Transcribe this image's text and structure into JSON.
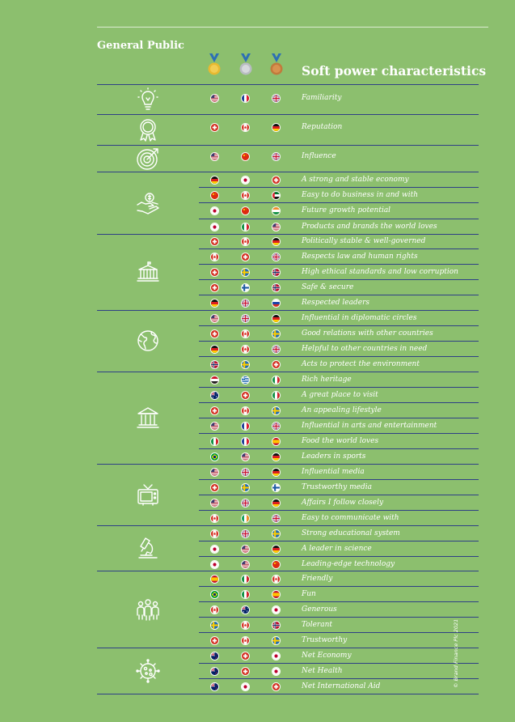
{
  "header": {
    "section_title": "General Public",
    "table_title": "Soft power characteristics",
    "medals": [
      "gold-medal",
      "silver-medal",
      "bronze-medal"
    ]
  },
  "categories": [
    {
      "icon": "lightbulb-icon",
      "rows": [
        {
          "label": "Familiarity",
          "flags": [
            "us",
            "fr",
            "uk"
          ]
        }
      ]
    },
    {
      "icon": "award-rosette-icon",
      "rows": [
        {
          "label": "Reputation",
          "flags": [
            "ch",
            "ca",
            "de"
          ]
        }
      ]
    },
    {
      "icon": "target-icon",
      "rows": [
        {
          "label": "Influence",
          "flags": [
            "us",
            "cn",
            "uk"
          ]
        }
      ]
    },
    {
      "icon": "handshake-money-icon",
      "rows": [
        {
          "label": "A strong and stable economy",
          "flags": [
            "de",
            "jp",
            "ch"
          ]
        },
        {
          "label": "Easy to do business in and with",
          "flags": [
            "cn",
            "ca",
            "ae"
          ]
        },
        {
          "label": "Future growth potential",
          "flags": [
            "jp",
            "cn",
            "in"
          ]
        },
        {
          "label": "Products and brands the world loves",
          "flags": [
            "jp",
            "it",
            "us"
          ]
        }
      ]
    },
    {
      "icon": "government-building-icon",
      "rows": [
        {
          "label": "Politically stable & well-governed",
          "flags": [
            "ch",
            "ca",
            "de"
          ]
        },
        {
          "label": "Respects law and human rights",
          "flags": [
            "ca",
            "ch",
            "uk"
          ]
        },
        {
          "label": "High ethical standards and low corruption",
          "flags": [
            "ch",
            "se",
            "no"
          ]
        },
        {
          "label": "Safe & secure",
          "flags": [
            "ch",
            "fi",
            "no"
          ]
        },
        {
          "label": "Respected leaders",
          "flags": [
            "de",
            "uk",
            "ru"
          ]
        }
      ]
    },
    {
      "icon": "globe-icon",
      "rows": [
        {
          "label": "Influential in diplomatic circles",
          "flags": [
            "us",
            "uk",
            "de"
          ]
        },
        {
          "label": "Good relations with other countries",
          "flags": [
            "ch",
            "ca",
            "se"
          ]
        },
        {
          "label": "Helpful to other countries in need",
          "flags": [
            "de",
            "ca",
            "uk"
          ]
        },
        {
          "label": "Acts to protect the environment",
          "flags": [
            "no",
            "se",
            "ch"
          ]
        }
      ]
    },
    {
      "icon": "museum-icon",
      "rows": [
        {
          "label": "Rich heritage",
          "flags": [
            "eg",
            "gr",
            "it"
          ]
        },
        {
          "label": "A great place to visit",
          "flags": [
            "au",
            "ch",
            "it"
          ]
        },
        {
          "label": "An appealing lifestyle",
          "flags": [
            "ch",
            "ca",
            "se"
          ]
        },
        {
          "label": "Influential in arts and entertainment",
          "flags": [
            "us",
            "fr",
            "uk"
          ]
        },
        {
          "label": "Food the world loves",
          "flags": [
            "it",
            "fr",
            "es"
          ]
        },
        {
          "label": "Leaders in sports",
          "flags": [
            "br",
            "us",
            "de"
          ]
        }
      ]
    },
    {
      "icon": "television-icon",
      "rows": [
        {
          "label": "Influential media",
          "flags": [
            "us",
            "uk",
            "de"
          ]
        },
        {
          "label": "Trustworthy media",
          "flags": [
            "ch",
            "se",
            "fi"
          ]
        },
        {
          "label": "Affairs I follow closely",
          "flags": [
            "us",
            "uk",
            "de"
          ]
        },
        {
          "label": "Easy to communicate with",
          "flags": [
            "ca",
            "ie",
            "uk"
          ]
        }
      ]
    },
    {
      "icon": "microscope-icon",
      "rows": [
        {
          "label": "Strong educational system",
          "flags": [
            "ca",
            "uk",
            "se"
          ]
        },
        {
          "label": "A leader in science",
          "flags": [
            "jp",
            "us",
            "de"
          ]
        },
        {
          "label": "Leading-edge technology",
          "flags": [
            "jp",
            "us",
            "cn"
          ]
        }
      ]
    },
    {
      "icon": "people-group-icon",
      "rows": [
        {
          "label": "Friendly",
          "flags": [
            "es",
            "it",
            "ca"
          ]
        },
        {
          "label": "Fun",
          "flags": [
            "br",
            "it",
            "es"
          ]
        },
        {
          "label": "Generous",
          "flags": [
            "ca",
            "au",
            "jp"
          ]
        },
        {
          "label": "Tolerant",
          "flags": [
            "se",
            "ca",
            "no"
          ]
        },
        {
          "label": "Trustworthy",
          "flags": [
            "ch",
            "ca",
            "se"
          ]
        }
      ]
    },
    {
      "icon": "virus-icon",
      "rows": [
        {
          "label": "Net Economy",
          "flags": [
            "nz",
            "ch",
            "jp"
          ]
        },
        {
          "label": "Net Health",
          "flags": [
            "nz",
            "ch",
            "jp"
          ]
        },
        {
          "label": "Net International Aid",
          "flags": [
            "nz",
            "jp",
            "ch"
          ]
        }
      ]
    }
  ],
  "footer": {
    "copyright": "© Brand Finance Plc 2021"
  }
}
